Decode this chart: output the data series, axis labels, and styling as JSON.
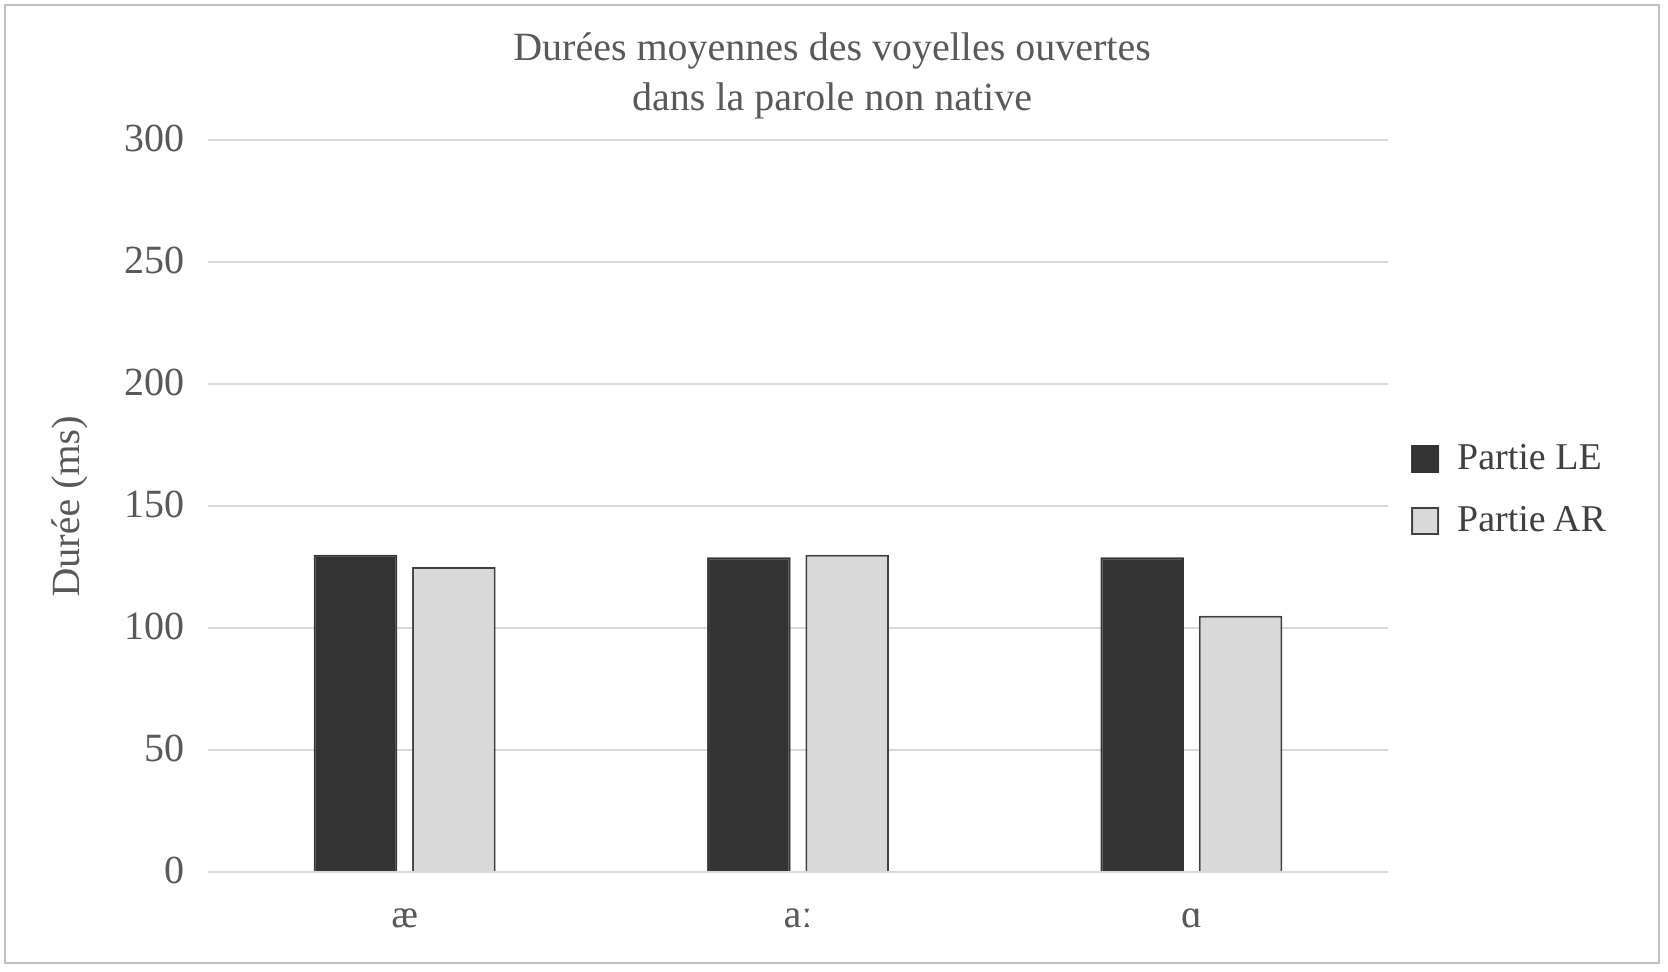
{
  "chart_data": {
    "type": "bar",
    "title": [
      "Durées moyennes des voyelles ouvertes",
      "dans la parole non native"
    ],
    "ylabel": "Durée (ms)",
    "categories": [
      "æ",
      "aː",
      "ɑ"
    ],
    "series": [
      {
        "name": "Partie LE",
        "color": "#333333",
        "values": [
          130,
          129,
          129
        ]
      },
      {
        "name": "Partie AR",
        "color": "#d9d9d9",
        "values": [
          125,
          130,
          105
        ]
      }
    ],
    "ylim": [
      0,
      300
    ],
    "yticks": [
      0,
      50,
      100,
      150,
      200,
      250,
      300
    ],
    "grid": "y",
    "legend": "right"
  }
}
